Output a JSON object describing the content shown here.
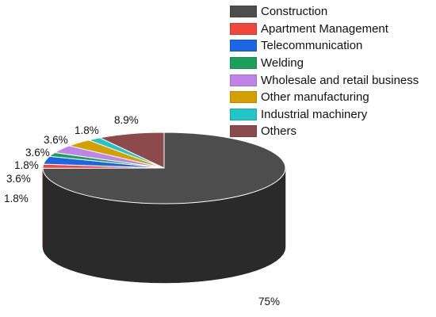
{
  "chart_data": {
    "type": "pie",
    "categories": [
      "Construction",
      "Apartment Management",
      "Telecommunication",
      "Welding",
      "Wholesale and retail business",
      "Other manufacturing",
      "Industrial machinery",
      "Others"
    ],
    "values": [
      75,
      1.8,
      3.6,
      1.8,
      3.6,
      3.6,
      1.8,
      8.9
    ],
    "labels": [
      "75%",
      "1.8%",
      "3.6%",
      "1.8%",
      "3.6%",
      "3.6%",
      "1.8%",
      "8.9%"
    ],
    "colors": [
      "#4d4d4d",
      "#f0463c",
      "#1a66e6",
      "#1aa05a",
      "#c084e8",
      "#d4a000",
      "#22c4c8",
      "#8c4a4a"
    ],
    "title": "",
    "legend_position": "top-right",
    "style": "3d"
  }
}
